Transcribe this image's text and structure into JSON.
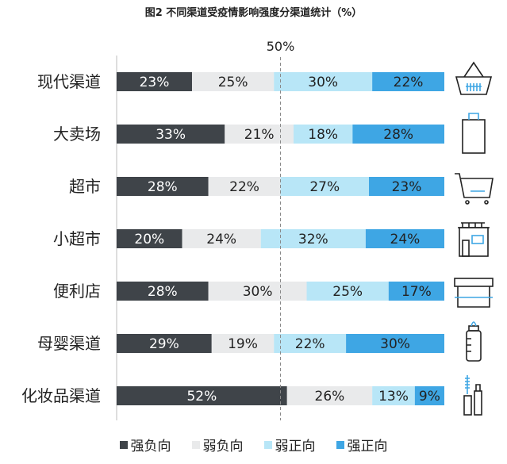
{
  "title": "图2 不同渠道受疫情影响强度分渠道统计（%）",
  "colors": {
    "strong_negative": "#3f4449",
    "weak_negative": "#e9eaeb",
    "weak_positive": "#b8e6f7",
    "strong_positive": "#3ea6e4",
    "midline": "#8a8a8a",
    "axis": "#bdbdbd"
  },
  "icons": [
    "basket-icon",
    "shopping-bag-icon",
    "shopping-cart-icon",
    "store-front-icon",
    "awning-shop-icon",
    "baby-bottle-icon",
    "cosmetics-icon"
  ],
  "chart_data": {
    "type": "bar",
    "orientation": "horizontal",
    "stacked": true,
    "percent_stacked": true,
    "reference_line": {
      "value": 50,
      "label": "50%"
    },
    "categories": [
      "现代渠道",
      "大卖场",
      "超市",
      "小超市",
      "便利店",
      "母婴渠道",
      "化妆品渠道"
    ],
    "series": [
      {
        "name": "强负向",
        "values": [
          23,
          33,
          28,
          20,
          28,
          29,
          52
        ]
      },
      {
        "name": "弱负向",
        "values": [
          25,
          21,
          22,
          24,
          30,
          19,
          26
        ]
      },
      {
        "name": "弱正向",
        "values": [
          30,
          18,
          27,
          32,
          25,
          22,
          13
        ]
      },
      {
        "name": "强正向",
        "values": [
          22,
          28,
          23,
          24,
          17,
          30,
          9
        ]
      }
    ],
    "value_labels": [
      [
        "23%",
        "25%",
        "30%",
        "22%"
      ],
      [
        "33%",
        "21%",
        "18%",
        "28%"
      ],
      [
        "28%",
        "22%",
        "27%",
        "23%"
      ],
      [
        "20%",
        "24%",
        "32%",
        "24%"
      ],
      [
        "28%",
        "30%",
        "25%",
        "17%"
      ],
      [
        "29%",
        "19%",
        "22%",
        "30%"
      ],
      [
        "52%",
        "26%",
        "13%",
        "9%"
      ]
    ],
    "xlim": [
      0,
      100
    ],
    "legend_position": "bottom"
  }
}
